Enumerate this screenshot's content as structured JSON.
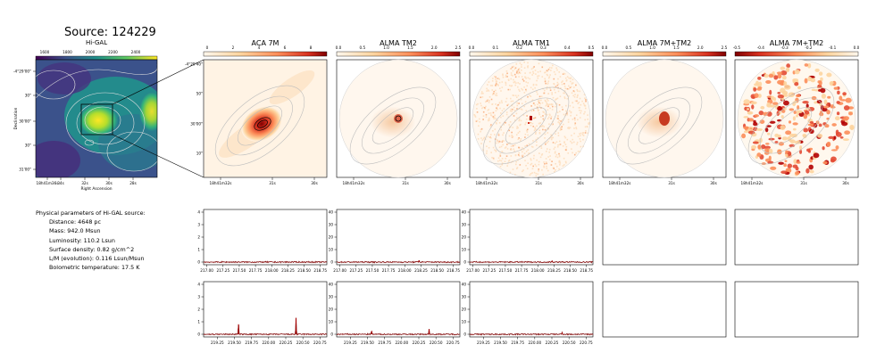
{
  "header": {
    "source_title": "Source: 124229"
  },
  "higal": {
    "title": "Hi-GAL",
    "colorbar_ticks": [
      "1600",
      "1800",
      "2000",
      "2200",
      "2400"
    ],
    "y_ticks": [
      "-4°29'00\"",
      "30\"",
      "30'00\"",
      "30\"",
      "31'00\""
    ],
    "x_ticks": [
      "18h41m36s",
      "34s",
      "32s",
      "30s",
      "28s"
    ],
    "ylabel": "Declination",
    "xlabel": "Right Ascension"
  },
  "zoom_axes": {
    "y_ticks": [
      "-4°29'40\"",
      "50\"",
      "30'00\"",
      "10\""
    ],
    "x_ticks": [
      "18h41m32s",
      "31s",
      "30s"
    ]
  },
  "panels": [
    {
      "title": "ACA 7M",
      "cbar_ticks": [
        "0",
        "2",
        "4",
        "6",
        "8"
      ]
    },
    {
      "title": "ALMA TM2",
      "cbar_ticks": [
        "0.0",
        "0.5",
        "1.0",
        "1.5",
        "2.0",
        "2.5"
      ]
    },
    {
      "title": "ALMA TM1",
      "cbar_ticks": [
        "0.0",
        "0.1",
        "0.2",
        "0.3",
        "0.4",
        "0.5"
      ]
    },
    {
      "title": "ALMA 7M+TM2",
      "cbar_ticks": [
        "0.0",
        "0.5",
        "1.0",
        "1.5",
        "2.0",
        "2.5"
      ]
    },
    {
      "title": "ALMA 7M+TM2",
      "cbar_ticks": [
        "-0.5",
        "-0.4",
        "-0.3",
        "-0.2",
        "-0.1",
        "0.0"
      ]
    }
  ],
  "params": {
    "heading": "Physical parameters of Hi-GAL source:",
    "distance": "Distance: 4648 pc",
    "mass": "Mass: 942.0 Msun",
    "luminosity": "Luminosity: 110.2 Lsun",
    "surface_density": "Surface density: 0.82 g/cm^2",
    "lm": "L/M (evolution): 0.116 Lsun/Msun",
    "tbol": "Bolometric temperature: 17.5 K"
  },
  "chart_data": {
    "type": "line",
    "spectra": [
      {
        "row": 1,
        "col": 1,
        "x_ticks": [
          "217.00",
          "217.25",
          "217.50",
          "217.75",
          "218.00",
          "218.25",
          "218.50",
          "218.75"
        ],
        "ylim": [
          0,
          4
        ],
        "y_ticks": [
          "0",
          "1",
          "2",
          "3",
          "4"
        ],
        "xlim": [
          216.95,
          218.85
        ],
        "peaks": []
      },
      {
        "row": 1,
        "col": 2,
        "x_ticks": [
          "217.00",
          "217.25",
          "217.50",
          "217.75",
          "218.00",
          "218.25",
          "218.50",
          "218.75"
        ],
        "ylim": [
          0,
          40
        ],
        "y_ticks": [
          "0",
          "10",
          "20",
          "30",
          "40"
        ],
        "xlim": [
          216.95,
          218.85
        ],
        "peaks": [
          [
            218.22,
            1.5
          ]
        ]
      },
      {
        "row": 1,
        "col": 3,
        "x_ticks": [
          "217.00",
          "217.25",
          "217.50",
          "217.75",
          "218.00",
          "218.25",
          "218.50",
          "218.75"
        ],
        "ylim": [
          0,
          40
        ],
        "y_ticks": [
          "0",
          "10",
          "20",
          "30",
          "40"
        ],
        "xlim": [
          216.95,
          218.85
        ],
        "peaks": [
          [
            218.22,
            1.0
          ]
        ]
      },
      {
        "row": 2,
        "col": 1,
        "x_ticks": [
          "219.25",
          "219.50",
          "219.75",
          "220.00",
          "220.25",
          "220.50",
          "220.75"
        ],
        "ylim": [
          0,
          4
        ],
        "y_ticks": [
          "0",
          "1",
          "2",
          "3",
          "4"
        ],
        "xlim": [
          219.05,
          220.85
        ],
        "peaks": [
          [
            219.56,
            0.8
          ],
          [
            220.4,
            1.3
          ]
        ]
      },
      {
        "row": 2,
        "col": 2,
        "x_ticks": [
          "219.25",
          "219.50",
          "219.75",
          "220.00",
          "220.25",
          "220.50",
          "220.75"
        ],
        "ylim": [
          0,
          40
        ],
        "y_ticks": [
          "0",
          "10",
          "20",
          "30",
          "40"
        ],
        "xlim": [
          219.05,
          220.85
        ],
        "peaks": [
          [
            219.56,
            2.5
          ],
          [
            220.4,
            4.0
          ]
        ]
      },
      {
        "row": 2,
        "col": 3,
        "x_ticks": [
          "219.25",
          "219.50",
          "219.75",
          "220.00",
          "220.25",
          "220.50",
          "220.75"
        ],
        "ylim": [
          0,
          40
        ],
        "y_ticks": [
          "0",
          "10",
          "20",
          "30",
          "40"
        ],
        "xlim": [
          219.05,
          220.85
        ],
        "peaks": [
          [
            220.4,
            1.5
          ]
        ]
      }
    ]
  }
}
